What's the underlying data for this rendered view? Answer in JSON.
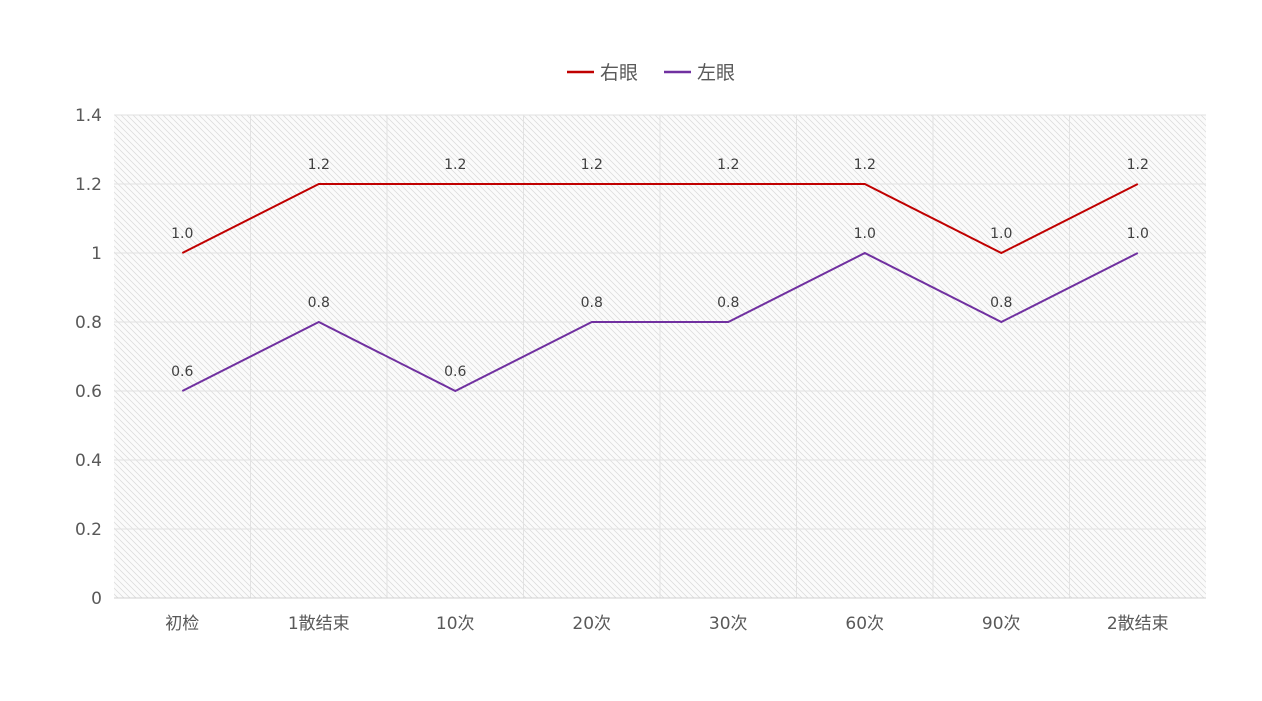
{
  "chart_data": {
    "type": "line",
    "title": "",
    "xlabel": "",
    "ylabel": "",
    "categories": [
      "初检",
      "1散结束",
      "10次",
      "20次",
      "30次",
      "60次",
      "90次",
      "2散结束"
    ],
    "ylim": [
      0,
      1.4
    ],
    "yticks": [
      "0",
      "0.2",
      "0.4",
      "0.6",
      "0.8",
      "1",
      "1.2",
      "1.4"
    ],
    "grid": true,
    "legend_position": "top-center",
    "series": [
      {
        "name": "右眼",
        "color": "#C00000",
        "values": [
          1.0,
          1.2,
          1.2,
          1.2,
          1.2,
          1.2,
          1.0,
          1.2
        ],
        "labels": [
          "1.0",
          "1.2",
          "1.2",
          "1.2",
          "1.2",
          "1.2",
          "1.0",
          "1.2"
        ]
      },
      {
        "name": "左眼",
        "color": "#7030A0",
        "values": [
          0.6,
          0.8,
          0.6,
          0.8,
          0.8,
          1.0,
          0.8,
          1.0
        ],
        "labels": [
          "0.6",
          "0.8",
          "0.6",
          "0.8",
          "0.8",
          "1.0",
          "0.8",
          "1.0"
        ]
      }
    ]
  }
}
